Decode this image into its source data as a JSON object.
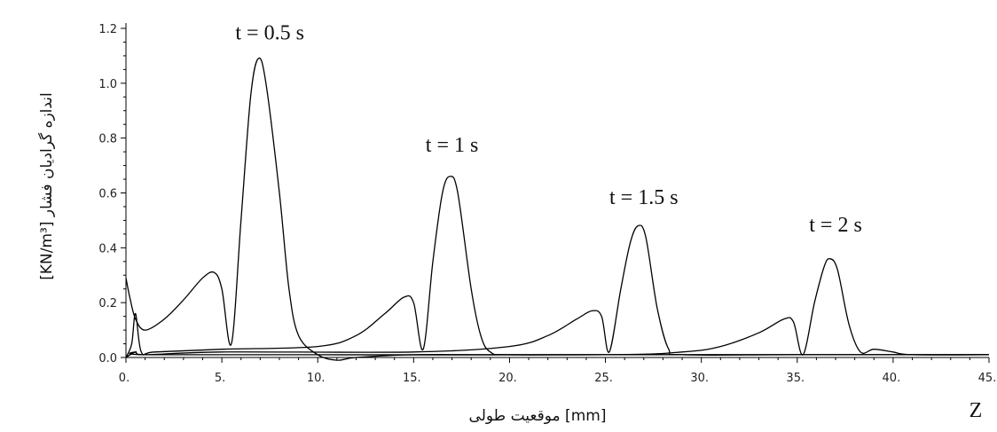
{
  "chart_data": {
    "type": "line",
    "xlabel": "موقعیت طولی [mm]",
    "x_axis_symbol": "Z",
    "ylabel": "[KN/m³] اندازه گرادیان فشار",
    "xlim": [
      0,
      45
    ],
    "ylim": [
      0,
      1.2
    ],
    "x_ticks": [
      "0.",
      "5.",
      "10.",
      "15.",
      "20.",
      "25.",
      "30.",
      "35.",
      "40.",
      "45."
    ],
    "y_ticks": [
      "0.0",
      "0.2",
      "0.4",
      "0.6",
      "0.8",
      "1.0",
      "1.2"
    ],
    "grid": false,
    "legend": "none",
    "line_color": "#000000",
    "annotations": [
      {
        "text": "t =  0.5 s",
        "x": 7.5,
        "y": 1.16
      },
      {
        "text": "t =  1 s",
        "x": 17.0,
        "y": 0.75
      },
      {
        "text": "t =  1.5 s",
        "x": 27.0,
        "y": 0.56
      },
      {
        "text": "t =  2 s",
        "x": 37.0,
        "y": 0.46
      }
    ],
    "series": [
      {
        "x": [
          0,
          0.2,
          0.5,
          1,
          2,
          3,
          4,
          4.6,
          5,
          5.5,
          6,
          6.5,
          6.9,
          7.3,
          8,
          8.5,
          9,
          10,
          11,
          12,
          15,
          20,
          30,
          45
        ],
        "y": [
          0.29,
          0.22,
          0.14,
          0.1,
          0.14,
          0.21,
          0.29,
          0.31,
          0.25,
          0.05,
          0.5,
          0.95,
          1.09,
          1.0,
          0.6,
          0.25,
          0.08,
          0.01,
          -0.01,
          0.0,
          0.01,
          0.01,
          0.01,
          0.01
        ]
      },
      {
        "x": [
          0,
          0.3,
          0.5,
          0.8,
          1.5,
          5,
          10,
          12,
          13.5,
          14.5,
          15,
          15.5,
          16,
          16.5,
          16.9,
          17.3,
          18,
          18.5,
          19,
          20,
          25,
          35,
          45
        ],
        "y": [
          0.0,
          0.05,
          0.16,
          0.02,
          0.02,
          0.03,
          0.04,
          0.08,
          0.16,
          0.22,
          0.2,
          0.03,
          0.35,
          0.6,
          0.66,
          0.6,
          0.25,
          0.08,
          0.02,
          0.01,
          0.01,
          0.01,
          0.01
        ]
      },
      {
        "x": [
          0,
          0.5,
          1,
          5,
          15,
          20,
          22,
          23.5,
          24.3,
          24.8,
          25.2,
          25.8,
          26.3,
          26.7,
          27.1,
          27.7,
          28.3,
          29,
          35,
          45
        ],
        "y": [
          0.0,
          0.02,
          0.01,
          0.02,
          0.02,
          0.04,
          0.08,
          0.14,
          0.17,
          0.15,
          0.02,
          0.25,
          0.42,
          0.48,
          0.44,
          0.18,
          0.03,
          0.01,
          0.01,
          0.01
        ]
      },
      {
        "x": [
          0,
          0.5,
          1,
          10,
          25,
          29,
          31,
          33,
          34.3,
          34.8,
          35.3,
          35.9,
          36.4,
          36.7,
          37.1,
          37.7,
          38.3,
          39,
          40,
          41,
          45
        ],
        "y": [
          0.0,
          0.02,
          0.01,
          0.01,
          0.01,
          0.02,
          0.04,
          0.09,
          0.14,
          0.13,
          0.01,
          0.2,
          0.33,
          0.36,
          0.32,
          0.12,
          0.02,
          0.03,
          0.02,
          0.01,
          0.01
        ]
      }
    ]
  }
}
